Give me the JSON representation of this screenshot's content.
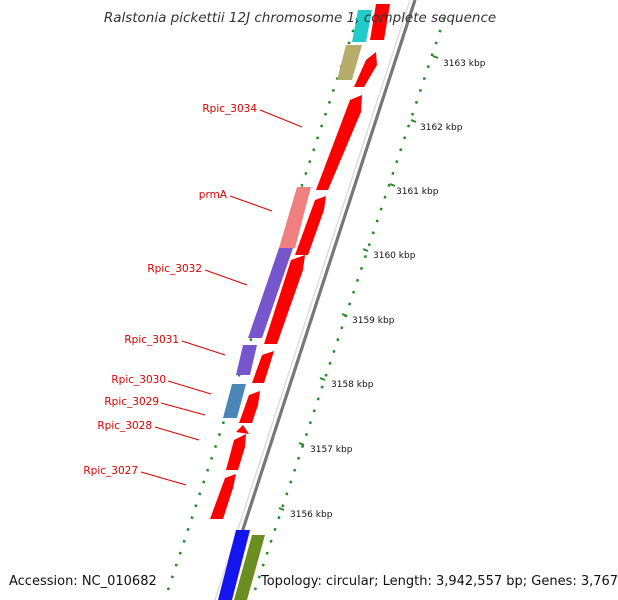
{
  "title": "Ralstonia pickettii 12J chromosome 1, complete sequence",
  "footer": {
    "accession": "Accession: NC_010682",
    "topology": "Topology: circular; Length: 3,942,557 bp; Genes: 3,767"
  },
  "gene_labels": [
    "Rpic_3034",
    "prmA",
    "Rpic_3032",
    "Rpic_3031",
    "Rpic_3030",
    "Rpic_3029",
    "Rpic_3028",
    "Rpic_3027"
  ],
  "ticks": [
    "3163 kbp",
    "3162 kbp",
    "3161 kbp",
    "3160 kbp",
    "3159 kbp",
    "3158 kbp",
    "3157 kbp",
    "3156 kbp"
  ],
  "colors": {
    "cds_red": "#ff0000",
    "prmA_pink": "#f08080",
    "purple": "#7755cc",
    "steel_blue": "#4a86b8",
    "cyan": "#22cccc",
    "khaki": "#b8ac6a",
    "blue": "#1414ee",
    "olive": "#6b8e23",
    "green_dots": "#228b22",
    "label_red": "#dd0000",
    "backbone": "#888888"
  }
}
